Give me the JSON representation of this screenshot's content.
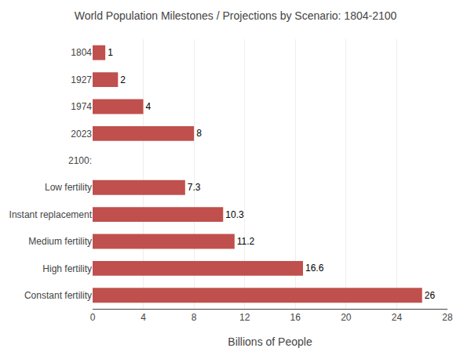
{
  "chart_data": {
    "type": "bar",
    "orientation": "horizontal",
    "title": "World Population Milestones / Projections by Scenario: 1804-2100",
    "categories": [
      "1804",
      "1927",
      "1974",
      "2023",
      "2100:",
      "Low fertility",
      "Instant replacement",
      "Medium fertility",
      "High fertility",
      "Constant fertility"
    ],
    "values": [
      1,
      2,
      4,
      8,
      0,
      7.3,
      10.3,
      11.2,
      16.6,
      26
    ],
    "value_labels": [
      "1",
      "2",
      "4",
      "8",
      null,
      "7.3",
      "10.3",
      "11.2",
      "16.6",
      "26"
    ],
    "data_labels": true,
    "color": "#c0504d",
    "xlabel": "Billions of People",
    "xlim": [
      0,
      28
    ],
    "xticks": [
      0,
      4,
      8,
      12,
      16,
      20,
      24,
      28
    ],
    "grid": true
  }
}
